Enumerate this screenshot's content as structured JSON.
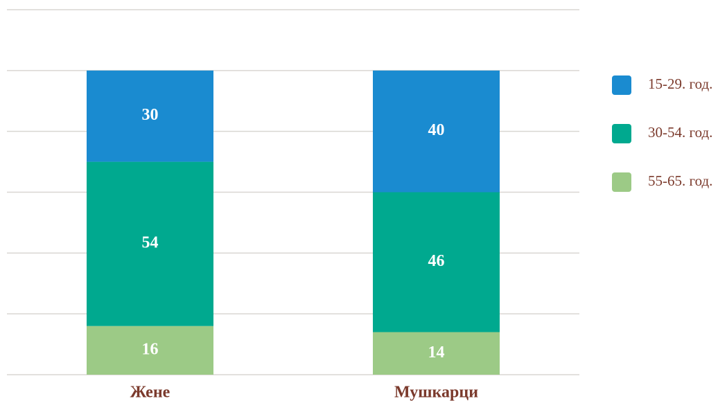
{
  "chart_data": {
    "type": "stacked_bar",
    "categories": [
      "Жене",
      "Мушкарци"
    ],
    "series": [
      {
        "name": "15-29. год.",
        "color": "#1a8bd0",
        "values": [
          30,
          40
        ]
      },
      {
        "name": "30-54. год.",
        "color": "#00a98f",
        "values": [
          54,
          46
        ]
      },
      {
        "name": "55-65. год.",
        "color": "#9cca86",
        "values": [
          16,
          14
        ]
      }
    ],
    "ylim": [
      0,
      120
    ],
    "yticks": [
      0,
      20,
      40,
      60,
      80,
      100,
      120
    ],
    "grid": true,
    "legend": "right"
  }
}
